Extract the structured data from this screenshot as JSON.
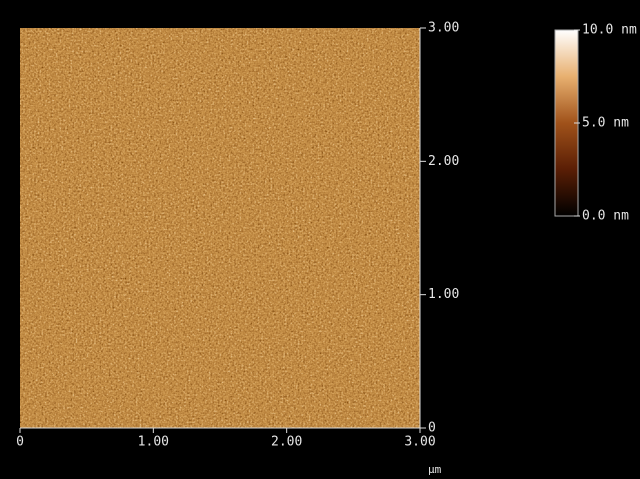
{
  "chart_data": {
    "type": "heatmap",
    "x_label": "µm",
    "xlim": [
      0,
      3
    ],
    "xticks": [
      0,
      {
        "value": 1,
        "label": "1.00"
      },
      {
        "value": 2,
        "label": "2.00"
      },
      {
        "value": 3,
        "label": "3.00"
      }
    ],
    "ylim": [
      0,
      3
    ],
    "yticks": [
      0,
      {
        "value": 1,
        "label": "1.00"
      },
      {
        "value": 2,
        "label": "2.00"
      },
      {
        "value": 3,
        "label": "3.00"
      }
    ],
    "colorbar": {
      "lim": [
        0,
        10
      ],
      "ticks": [
        {
          "value": 0,
          "label": "0.0 nm"
        },
        {
          "value": 5,
          "label": "5.0 nm"
        },
        {
          "value": 10,
          "label": "10.0 nm"
        }
      ],
      "colors": [
        "#000000",
        "#5a1e05",
        "#a0521a",
        "#e8b070",
        "#ffffff"
      ]
    }
  }
}
